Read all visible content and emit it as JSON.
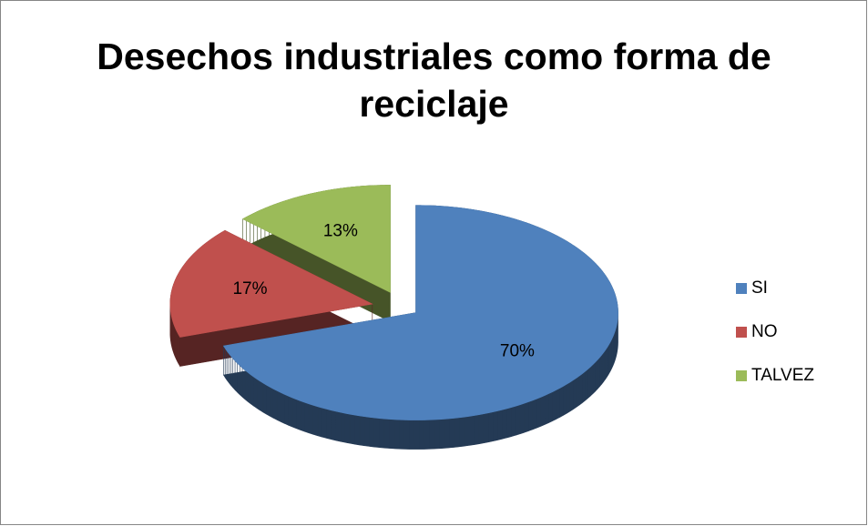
{
  "chart_data": {
    "type": "pie",
    "title": "Desechos industriales como forma de reciclaje",
    "categories": [
      "SI",
      "NO",
      "TALVEZ"
    ],
    "values": [
      70,
      17,
      13
    ],
    "value_labels": [
      "70%",
      "17%",
      "13%"
    ],
    "colors": [
      "#4f81bd",
      "#c0504d",
      "#9bbb59"
    ],
    "legend": "right",
    "three_d": true,
    "exploded": true
  }
}
